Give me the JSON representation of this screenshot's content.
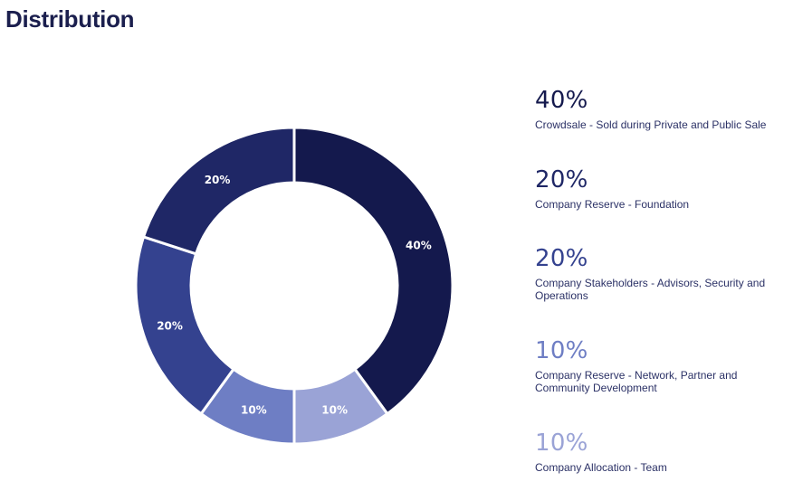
{
  "page": {
    "title": "Distribution"
  },
  "chart_data": {
    "type": "pie",
    "variant": "donut",
    "title": "Distribution",
    "slices": [
      {
        "label": "Crowdsale - Sold during Private and Public Sale",
        "value": 40,
        "value_label": "40%",
        "color": "#14194d"
      },
      {
        "label": "Company Allocation - Team",
        "value": 10,
        "value_label": "10%",
        "color": "#9aa3d6"
      },
      {
        "label": "Company Reserve - Network, Partner and Community Development",
        "value": 10,
        "value_label": "10%",
        "color": "#6e7ec4"
      },
      {
        "label": "Company Stakeholders - Advisors, Security and Operations",
        "value": 20,
        "value_label": "20%",
        "color": "#34428f"
      },
      {
        "label": "Company Reserve - Foundation",
        "value": 20,
        "value_label": "20%",
        "color": "#1f2766"
      }
    ],
    "legend_order": [
      0,
      4,
      3,
      2,
      1
    ],
    "legend_placement": "right"
  }
}
